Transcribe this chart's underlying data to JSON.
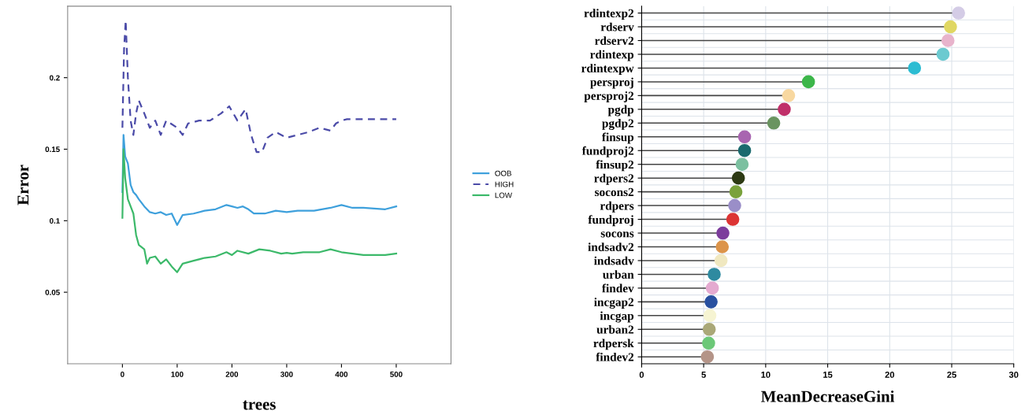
{
  "chart_data": [
    {
      "type": "line",
      "xlabel": "trees",
      "ylabel": "Error",
      "xlim": [
        -100,
        600
      ],
      "ylim": [
        0,
        0.25
      ],
      "xticks": [
        0,
        100,
        200,
        300,
        400,
        500
      ],
      "yticks": [
        0.05,
        0.1,
        0.15,
        0.2
      ],
      "legend": "right",
      "grid": false,
      "series": [
        {
          "name": "OOB",
          "color": "#3ea0dc",
          "line_style": "solid",
          "x": [
            0,
            2,
            5,
            10,
            15,
            20,
            25,
            30,
            40,
            50,
            60,
            70,
            80,
            90,
            100,
            110,
            130,
            150,
            170,
            190,
            200,
            210,
            220,
            230,
            240,
            260,
            280,
            300,
            320,
            350,
            380,
            400,
            420,
            440,
            480,
            500
          ],
          "values": [
            0.12,
            0.16,
            0.145,
            0.14,
            0.125,
            0.12,
            0.118,
            0.115,
            0.11,
            0.106,
            0.105,
            0.106,
            0.104,
            0.105,
            0.097,
            0.104,
            0.105,
            0.107,
            0.108,
            0.111,
            0.11,
            0.109,
            0.11,
            0.108,
            0.105,
            0.105,
            0.107,
            0.106,
            0.107,
            0.107,
            0.109,
            0.111,
            0.109,
            0.109,
            0.108,
            0.11
          ]
        },
        {
          "name": "HIGH",
          "color": "#4b4ba8",
          "line_style": "dashed",
          "x": [
            0,
            3,
            6,
            10,
            15,
            20,
            25,
            30,
            40,
            50,
            60,
            70,
            80,
            100,
            110,
            120,
            140,
            160,
            180,
            195,
            210,
            225,
            235,
            245,
            255,
            265,
            280,
            300,
            320,
            340,
            360,
            380,
            390,
            400,
            410,
            500
          ],
          "values": [
            0.165,
            0.22,
            0.24,
            0.2,
            0.17,
            0.16,
            0.175,
            0.184,
            0.175,
            0.165,
            0.17,
            0.16,
            0.17,
            0.165,
            0.16,
            0.168,
            0.17,
            0.17,
            0.175,
            0.18,
            0.17,
            0.178,
            0.16,
            0.148,
            0.148,
            0.158,
            0.162,
            0.158,
            0.16,
            0.162,
            0.165,
            0.163,
            0.168,
            0.17,
            0.171,
            0.171
          ]
        },
        {
          "name": "LOW",
          "color": "#3cb96a",
          "line_style": "solid",
          "x": [
            0,
            2,
            5,
            10,
            15,
            20,
            25,
            30,
            40,
            45,
            50,
            60,
            70,
            80,
            90,
            100,
            110,
            130,
            150,
            170,
            190,
            200,
            210,
            230,
            250,
            270,
            290,
            300,
            310,
            330,
            360,
            380,
            400,
            440,
            480,
            500
          ],
          "values": [
            0.102,
            0.15,
            0.13,
            0.115,
            0.11,
            0.105,
            0.09,
            0.083,
            0.08,
            0.07,
            0.074,
            0.075,
            0.07,
            0.073,
            0.068,
            0.064,
            0.07,
            0.072,
            0.074,
            0.075,
            0.078,
            0.076,
            0.079,
            0.077,
            0.08,
            0.079,
            0.077,
            0.0775,
            0.077,
            0.078,
            0.078,
            0.08,
            0.078,
            0.076,
            0.076,
            0.077
          ]
        }
      ]
    },
    {
      "type": "lollipop",
      "orientation": "horizontal",
      "xlabel": "MeanDecreaseGini",
      "xlim": [
        0,
        30
      ],
      "xticks": [
        0,
        5,
        10,
        15,
        20,
        25,
        30
      ],
      "grid": true,
      "marker": "circle",
      "categories": [
        "rdintexp2",
        "rdserv",
        "rdserv2",
        "rdintexp",
        "rdintexpw",
        "persproj",
        "persproj2",
        "pgdp",
        "pgdp2",
        "finsup",
        "fundproj2",
        "finsup2",
        "rdpers2",
        "socons2",
        "rdpers",
        "fundproj",
        "socons",
        "indsadv2",
        "indsadv",
        "urban",
        "findev",
        "incgap2",
        "incgap",
        "urban2",
        "rdpersk",
        "findev2"
      ],
      "values": [
        25.55,
        24.9,
        24.7,
        24.3,
        22.0,
        13.45,
        11.85,
        11.5,
        10.65,
        8.3,
        8.3,
        8.1,
        7.8,
        7.6,
        7.5,
        7.35,
        6.55,
        6.5,
        6.4,
        5.85,
        5.7,
        5.6,
        5.5,
        5.45,
        5.4,
        5.3
      ],
      "colors": [
        "#d4cce6",
        "#e0d763",
        "#e8b4cc",
        "#6ccad0",
        "#2cbcd2",
        "#3cb64a",
        "#f8d8a0",
        "#c0306a",
        "#6a9460",
        "#a865b0",
        "#1a6a6e",
        "#7cc0a0",
        "#2d3a14",
        "#7aa23c",
        "#9a8ec8",
        "#dc3434",
        "#7c3c9c",
        "#dc944a",
        "#f0e8c0",
        "#2e8aa0",
        "#e4aad0",
        "#2850a0",
        "#f6f4d2",
        "#aaa878",
        "#6cc878",
        "#b49488"
      ]
    }
  ]
}
